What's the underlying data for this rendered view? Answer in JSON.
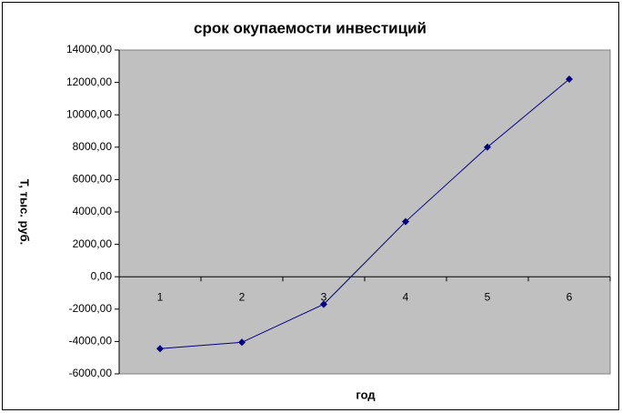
{
  "chart_data": {
    "type": "line",
    "title": "срок окупаемости инвестиций",
    "x_label": "год",
    "y_label": "Т, тыс. руб.",
    "categories": [
      "1",
      "2",
      "3",
      "4",
      "5",
      "6"
    ],
    "series": [
      {
        "name": "Т",
        "color": "#000080",
        "values": [
          -4440,
          -4050,
          -1700,
          3400,
          8000,
          12200
        ]
      }
    ],
    "ylim": [
      -6000,
      14000
    ],
    "yticks": [
      {
        "value": -6000,
        "label": "-6000,00"
      },
      {
        "value": -4000,
        "label": "-4000,00"
      },
      {
        "value": -2000,
        "label": "-2000,00"
      },
      {
        "value": 0,
        "label": "0,00"
      },
      {
        "value": 2000,
        "label": "2000,00"
      },
      {
        "value": 4000,
        "label": "4000,00"
      },
      {
        "value": 6000,
        "label": "6000,00"
      },
      {
        "value": 8000,
        "label": "8000,00"
      },
      {
        "value": 10000,
        "label": "10000,00"
      },
      {
        "value": 12000,
        "label": "12000,00"
      },
      {
        "value": 14000,
        "label": "14000,00"
      }
    ],
    "plot_background": "#c0c0c0"
  }
}
